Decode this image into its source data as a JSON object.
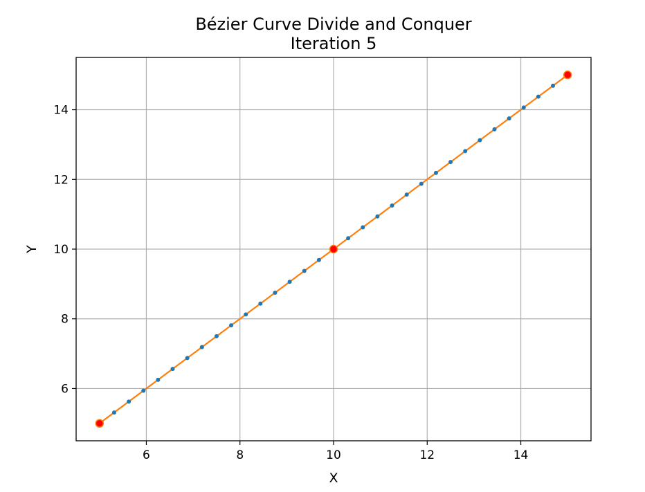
{
  "chart_data": {
    "type": "line",
    "title": "Bézier Curve Divide and Conquer",
    "subtitle": "Iteration 5",
    "xlabel": "X",
    "ylabel": "Y",
    "xlim": [
      4.5,
      15.5
    ],
    "ylim": [
      4.5,
      15.5
    ],
    "xticks": [
      6,
      8,
      10,
      12,
      14
    ],
    "yticks": [
      6,
      8,
      10,
      12,
      14
    ],
    "xtick_labels": [
      "6",
      "8",
      "10",
      "12",
      "14"
    ],
    "ytick_labels": [
      "6",
      "8",
      "10",
      "12",
      "14"
    ],
    "grid": true,
    "series": [
      {
        "kind": "curve-points",
        "color": "#1f77b4",
        "x": [
          5,
          5.3125,
          5.625,
          5.9375,
          6.25,
          6.5625,
          6.875,
          7.1875,
          7.5,
          7.8125,
          8.125,
          8.4375,
          8.75,
          9.0625,
          9.375,
          9.6875,
          10,
          10.3125,
          10.625,
          10.9375,
          11.25,
          11.5625,
          11.875,
          12.1875,
          12.5,
          12.8125,
          13.125,
          13.4375,
          13.75,
          14.0625,
          14.375,
          14.6875,
          15
        ],
        "y": [
          5,
          5.3125,
          5.625,
          5.9375,
          6.25,
          6.5625,
          6.875,
          7.1875,
          7.5,
          7.8125,
          8.125,
          8.4375,
          8.75,
          9.0625,
          9.375,
          9.6875,
          10,
          10.3125,
          10.625,
          10.9375,
          11.25,
          11.5625,
          11.875,
          12.1875,
          12.5,
          12.8125,
          13.125,
          13.4375,
          13.75,
          14.0625,
          14.375,
          14.6875,
          15
        ]
      },
      {
        "kind": "control-polygon",
        "color": "#ff7f0e",
        "marker_color": "#ff0000",
        "x": [
          5,
          10,
          15
        ],
        "y": [
          5,
          10,
          15
        ]
      }
    ]
  }
}
